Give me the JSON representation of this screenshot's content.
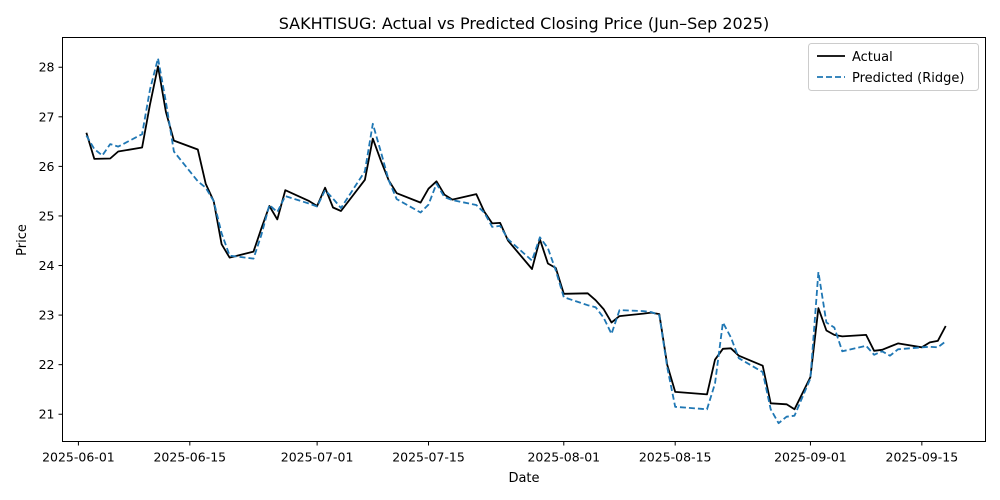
{
  "chart_data": {
    "type": "line",
    "title": "SAKHTISUG: Actual vs Predicted Closing Price (Jun–Sep 2025)",
    "xlabel": "Date",
    "ylabel": "Price",
    "xlim": [
      "2025-05-30",
      "2025-09-23"
    ],
    "ylim": [
      20.45,
      28.6
    ],
    "x_ticks": [
      "2025-06-01",
      "2025-06-15",
      "2025-07-01",
      "2025-07-15",
      "2025-08-01",
      "2025-08-15",
      "2025-09-01",
      "2025-09-15"
    ],
    "y_ticks": [
      21,
      22,
      23,
      24,
      25,
      26,
      27,
      28
    ],
    "grid": false,
    "legend_position": "top-right",
    "series": [
      {
        "name": "Actual",
        "color": "#000000",
        "style": "solid",
        "points": [
          [
            "2025-06-02",
            26.68
          ],
          [
            "2025-06-03",
            26.15
          ],
          [
            "2025-06-05",
            26.16
          ],
          [
            "2025-06-06",
            26.3
          ],
          [
            "2025-06-09",
            26.38
          ],
          [
            "2025-06-10",
            27.25
          ],
          [
            "2025-06-11",
            28.02
          ],
          [
            "2025-06-12",
            27.1
          ],
          [
            "2025-06-13",
            26.52
          ],
          [
            "2025-06-16",
            26.34
          ],
          [
            "2025-06-17",
            25.65
          ],
          [
            "2025-06-18",
            25.3
          ],
          [
            "2025-06-19",
            24.43
          ],
          [
            "2025-06-20",
            24.16
          ],
          [
            "2025-06-23",
            24.28
          ],
          [
            "2025-06-24",
            24.75
          ],
          [
            "2025-06-25",
            25.2
          ],
          [
            "2025-06-26",
            24.93
          ],
          [
            "2025-06-27",
            25.52
          ],
          [
            "2025-06-30",
            25.3
          ],
          [
            "2025-07-01",
            25.2
          ],
          [
            "2025-07-02",
            25.57
          ],
          [
            "2025-07-03",
            25.17
          ],
          [
            "2025-07-04",
            25.1
          ],
          [
            "2025-07-07",
            25.73
          ],
          [
            "2025-07-08",
            26.56
          ],
          [
            "2025-07-09",
            26.12
          ],
          [
            "2025-07-10",
            25.72
          ],
          [
            "2025-07-11",
            25.46
          ],
          [
            "2025-07-14",
            25.27
          ],
          [
            "2025-07-15",
            25.55
          ],
          [
            "2025-07-16",
            25.7
          ],
          [
            "2025-07-17",
            25.43
          ],
          [
            "2025-07-18",
            25.33
          ],
          [
            "2025-07-21",
            25.44
          ],
          [
            "2025-07-22",
            25.09
          ],
          [
            "2025-07-23",
            24.85
          ],
          [
            "2025-07-24",
            24.86
          ],
          [
            "2025-07-25",
            24.5
          ],
          [
            "2025-07-28",
            23.93
          ],
          [
            "2025-07-29",
            24.53
          ],
          [
            "2025-07-30",
            24.04
          ],
          [
            "2025-07-31",
            23.95
          ],
          [
            "2025-08-01",
            23.43
          ],
          [
            "2025-08-04",
            23.44
          ],
          [
            "2025-08-05",
            23.3
          ],
          [
            "2025-08-06",
            23.12
          ],
          [
            "2025-08-07",
            22.85
          ],
          [
            "2025-08-08",
            22.98
          ],
          [
            "2025-08-11",
            23.03
          ],
          [
            "2025-08-12",
            23.05
          ],
          [
            "2025-08-13",
            23.02
          ],
          [
            "2025-08-14",
            22.0
          ],
          [
            "2025-08-15",
            21.45
          ],
          [
            "2025-08-19",
            21.4
          ],
          [
            "2025-08-20",
            22.1
          ],
          [
            "2025-08-21",
            22.32
          ],
          [
            "2025-08-22",
            22.33
          ],
          [
            "2025-08-23",
            22.18
          ],
          [
            "2025-08-26",
            21.98
          ],
          [
            "2025-08-27",
            21.22
          ],
          [
            "2025-08-29",
            21.2
          ],
          [
            "2025-08-30",
            21.1
          ],
          [
            "2025-09-01",
            21.75
          ],
          [
            "2025-09-02",
            23.14
          ],
          [
            "2025-09-03",
            22.69
          ],
          [
            "2025-09-04",
            22.6
          ],
          [
            "2025-09-05",
            22.57
          ],
          [
            "2025-09-08",
            22.6
          ],
          [
            "2025-09-09",
            22.28
          ],
          [
            "2025-09-10",
            22.3
          ],
          [
            "2025-09-12",
            22.43
          ],
          [
            "2025-09-15",
            22.35
          ],
          [
            "2025-09-16",
            22.45
          ],
          [
            "2025-09-17",
            22.48
          ],
          [
            "2025-09-18",
            22.78
          ]
        ]
      },
      {
        "name": "Predicted (Ridge)",
        "color": "#1f77b4",
        "style": "dashed",
        "points": [
          [
            "2025-06-02",
            26.62
          ],
          [
            "2025-06-03",
            26.35
          ],
          [
            "2025-06-04",
            26.22
          ],
          [
            "2025-06-05",
            26.45
          ],
          [
            "2025-06-06",
            26.4
          ],
          [
            "2025-06-09",
            26.65
          ],
          [
            "2025-06-10",
            27.55
          ],
          [
            "2025-06-11",
            28.18
          ],
          [
            "2025-06-12",
            27.3
          ],
          [
            "2025-06-13",
            26.3
          ],
          [
            "2025-06-16",
            25.7
          ],
          [
            "2025-06-17",
            25.57
          ],
          [
            "2025-06-18",
            25.3
          ],
          [
            "2025-06-19",
            24.65
          ],
          [
            "2025-06-20",
            24.2
          ],
          [
            "2025-06-23",
            24.14
          ],
          [
            "2025-06-24",
            24.62
          ],
          [
            "2025-06-25",
            25.22
          ],
          [
            "2025-06-26",
            25.08
          ],
          [
            "2025-06-27",
            25.4
          ],
          [
            "2025-06-30",
            25.25
          ],
          [
            "2025-07-01",
            25.19
          ],
          [
            "2025-07-02",
            25.52
          ],
          [
            "2025-07-03",
            25.35
          ],
          [
            "2025-07-04",
            25.16
          ],
          [
            "2025-07-07",
            25.9
          ],
          [
            "2025-07-08",
            26.86
          ],
          [
            "2025-07-09",
            26.3
          ],
          [
            "2025-07-10",
            25.72
          ],
          [
            "2025-07-11",
            25.34
          ],
          [
            "2025-07-14",
            25.07
          ],
          [
            "2025-07-15",
            25.23
          ],
          [
            "2025-07-16",
            25.65
          ],
          [
            "2025-07-17",
            25.38
          ],
          [
            "2025-07-18",
            25.32
          ],
          [
            "2025-07-21",
            25.22
          ],
          [
            "2025-07-22",
            25.07
          ],
          [
            "2025-07-23",
            24.78
          ],
          [
            "2025-07-24",
            24.8
          ],
          [
            "2025-07-25",
            24.53
          ],
          [
            "2025-07-28",
            24.1
          ],
          [
            "2025-07-29",
            24.57
          ],
          [
            "2025-07-30",
            24.35
          ],
          [
            "2025-07-31",
            23.9
          ],
          [
            "2025-08-01",
            23.36
          ],
          [
            "2025-08-04",
            23.2
          ],
          [
            "2025-08-05",
            23.16
          ],
          [
            "2025-08-06",
            22.95
          ],
          [
            "2025-08-07",
            22.62
          ],
          [
            "2025-08-08",
            23.1
          ],
          [
            "2025-08-11",
            23.08
          ],
          [
            "2025-08-12",
            23.06
          ],
          [
            "2025-08-13",
            23.0
          ],
          [
            "2025-08-14",
            21.95
          ],
          [
            "2025-08-15",
            21.15
          ],
          [
            "2025-08-19",
            21.1
          ],
          [
            "2025-08-20",
            21.62
          ],
          [
            "2025-08-21",
            22.85
          ],
          [
            "2025-08-22",
            22.55
          ],
          [
            "2025-08-23",
            22.13
          ],
          [
            "2025-08-26",
            21.85
          ],
          [
            "2025-08-27",
            21.1
          ],
          [
            "2025-08-28",
            20.82
          ],
          [
            "2025-08-29",
            20.95
          ],
          [
            "2025-08-30",
            20.97
          ],
          [
            "2025-09-01",
            21.72
          ],
          [
            "2025-09-02",
            23.87
          ],
          [
            "2025-09-03",
            22.85
          ],
          [
            "2025-09-04",
            22.75
          ],
          [
            "2025-09-05",
            22.27
          ],
          [
            "2025-09-08",
            22.38
          ],
          [
            "2025-09-09",
            22.2
          ],
          [
            "2025-09-10",
            22.27
          ],
          [
            "2025-09-11",
            22.18
          ],
          [
            "2025-09-12",
            22.31
          ],
          [
            "2025-09-15",
            22.35
          ],
          [
            "2025-09-16",
            22.36
          ],
          [
            "2025-09-17",
            22.35
          ],
          [
            "2025-09-18",
            22.47
          ]
        ]
      }
    ]
  }
}
